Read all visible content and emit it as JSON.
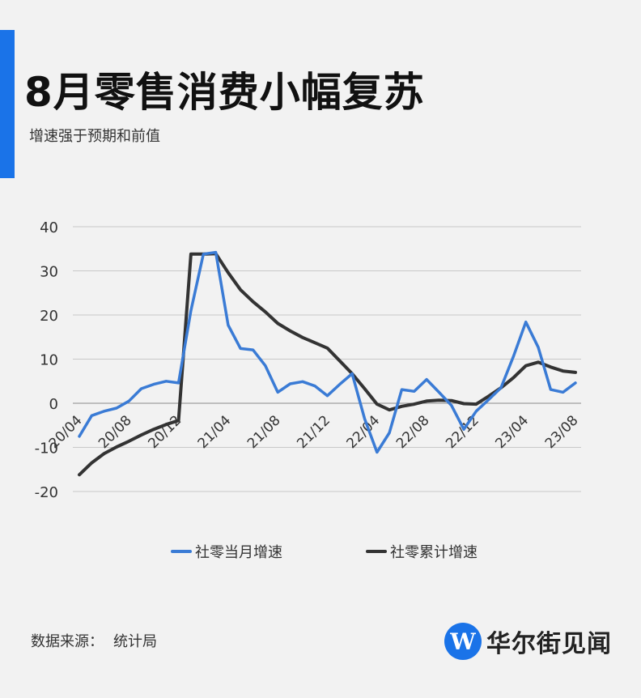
{
  "header": {
    "title": "8月零售消费小幅复苏",
    "subtitle": "增速强于预期和前值"
  },
  "footer": {
    "source_label": "数据来源：",
    "source_value": "统计局",
    "brand_name": "华尔街见闻",
    "brand_logo_letter": "W"
  },
  "colors": {
    "accent": "#1a73e8",
    "series_monthly": "#3a7bd5",
    "series_cumulative": "#333333"
  },
  "chart_data": {
    "type": "line",
    "title": "",
    "xlabel": "",
    "ylabel": "",
    "ylim": [
      -20,
      40
    ],
    "yticks": [
      40,
      30,
      20,
      10,
      0,
      -10,
      -20
    ],
    "grid": true,
    "legend_position": "bottom",
    "x": [
      "20/04",
      "20/05",
      "20/06",
      "20/07",
      "20/08",
      "20/09",
      "20/10",
      "20/11",
      "20/12",
      "21/01",
      "21/02",
      "21/03",
      "21/04",
      "21/05",
      "21/06",
      "21/07",
      "21/08",
      "21/09",
      "21/10",
      "21/11",
      "21/12",
      "22/01",
      "22/02",
      "22/03",
      "22/04",
      "22/05",
      "22/06",
      "22/07",
      "22/08",
      "22/09",
      "22/10",
      "22/11",
      "22/12",
      "23/01",
      "23/02",
      "23/03",
      "23/04",
      "23/05",
      "23/06",
      "23/07",
      "23/08"
    ],
    "xtick_labels": [
      "20/04",
      "20/08",
      "20/12",
      "21/04",
      "21/08",
      "21/12",
      "22/04",
      "22/08",
      "22/12",
      "23/04",
      "23/08"
    ],
    "series": [
      {
        "name": "社零当月增速",
        "values": [
          -7.5,
          -2.8,
          -1.8,
          -1.1,
          0.5,
          3.3,
          4.3,
          5.0,
          4.6,
          21.0,
          33.8,
          34.2,
          17.7,
          12.4,
          12.1,
          8.5,
          2.5,
          4.4,
          4.9,
          3.9,
          1.7,
          4.3,
          6.7,
          -3.5,
          -11.1,
          -6.7,
          3.1,
          2.7,
          5.4,
          2.5,
          -0.5,
          -5.9,
          -1.8,
          0.8,
          3.5,
          10.6,
          18.4,
          12.7,
          3.1,
          2.5,
          4.6
        ]
      },
      {
        "name": "社零累计增速",
        "values": [
          -16.2,
          -13.5,
          -11.4,
          -9.9,
          -8.6,
          -7.2,
          -5.9,
          -4.8,
          -3.9,
          33.8,
          33.8,
          33.9,
          29.6,
          25.7,
          23.0,
          20.7,
          18.1,
          16.4,
          14.9,
          13.7,
          12.5,
          9.6,
          6.7,
          3.3,
          -0.2,
          -1.5,
          -0.7,
          -0.2,
          0.5,
          0.7,
          0.6,
          -0.1,
          -0.2,
          1.6,
          3.5,
          5.8,
          8.5,
          9.3,
          8.2,
          7.3,
          7.0
        ]
      }
    ]
  }
}
